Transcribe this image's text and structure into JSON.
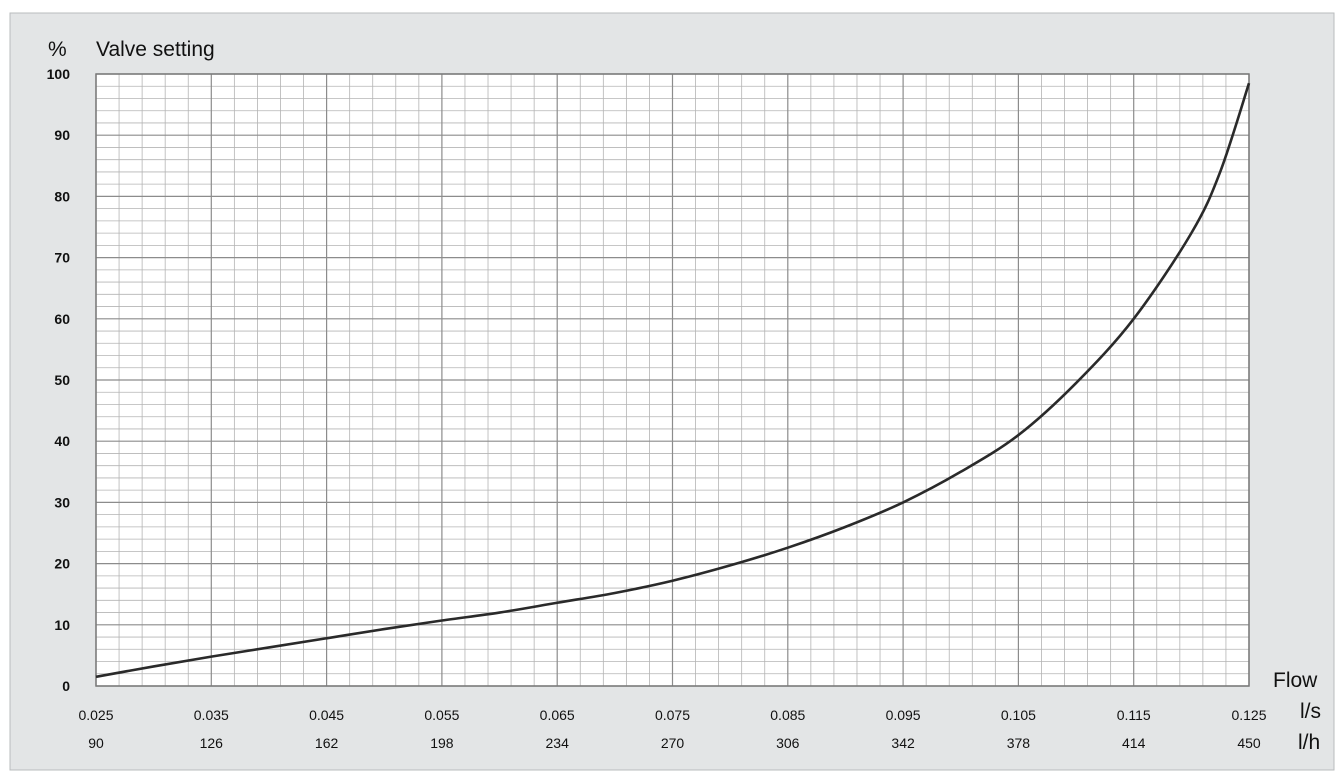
{
  "chart_data": {
    "type": "line",
    "y_unit": "%",
    "ylabel": "Valve setting",
    "xlabel": "Flow",
    "x_unit_primary": "l/s",
    "x_unit_secondary": "l/h",
    "xlim": [
      0.025,
      0.125
    ],
    "ylim": [
      0,
      100
    ],
    "x_ticks_primary": [
      "0.025",
      "0.035",
      "0.045",
      "0.055",
      "0.065",
      "0.075",
      "0.085",
      "0.095",
      "0.105",
      "0.115",
      "0.125"
    ],
    "x_ticks_secondary": [
      "90",
      "126",
      "162",
      "198",
      "234",
      "270",
      "306",
      "342",
      "378",
      "414",
      "450"
    ],
    "y_ticks": [
      "0",
      "10",
      "20",
      "30",
      "40",
      "50",
      "60",
      "70",
      "80",
      "90",
      "100"
    ],
    "grid": true,
    "series": [
      {
        "color": "#2a2a2a",
        "x": [
          0.025,
          0.03,
          0.035,
          0.04,
          0.045,
          0.05,
          0.055,
          0.06,
          0.065,
          0.07,
          0.075,
          0.08,
          0.085,
          0.09,
          0.095,
          0.1,
          0.105,
          0.11,
          0.115,
          0.12,
          0.1225,
          0.125
        ],
        "y": [
          1.5,
          3.2,
          4.8,
          6.3,
          7.8,
          9.3,
          10.7,
          12.0,
          13.6,
          15.2,
          17.2,
          19.7,
          22.6,
          26.0,
          30.0,
          35.0,
          41.0,
          49.5,
          60.0,
          74.0,
          84.0,
          98.5
        ]
      }
    ]
  },
  "colors": {
    "panel_background": "#e3e5e6",
    "plot_background": "#ffffff",
    "grid_major": "#8c8c8c",
    "grid_minor": "#b4b4b4",
    "curve": "#2a2a2a"
  }
}
